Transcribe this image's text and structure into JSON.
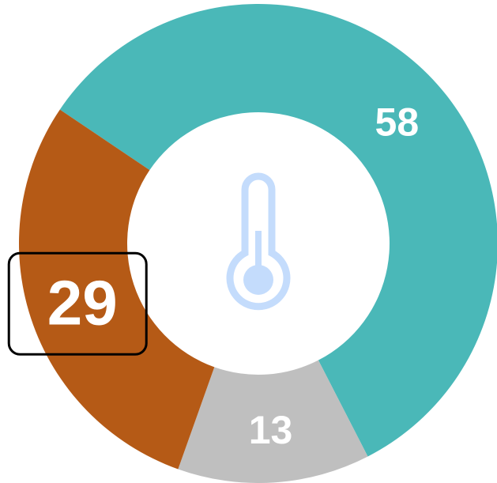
{
  "chart_data": {
    "type": "donut",
    "values": [
      58,
      13,
      29
    ],
    "colors": [
      "#4ab8b8",
      "#bfbfbf",
      "#b55a16"
    ],
    "highlight_index": 2
  }
}
